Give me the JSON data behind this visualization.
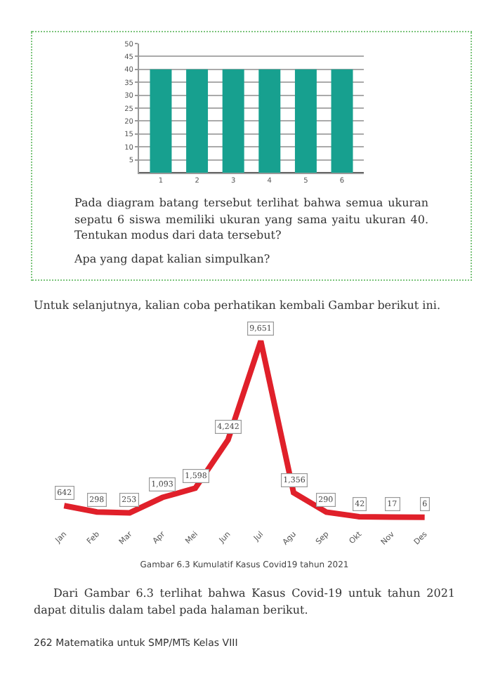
{
  "chart_data": [
    {
      "type": "bar",
      "categories": [
        "1",
        "2",
        "3",
        "4",
        "5",
        "6"
      ],
      "values": [
        40,
        40,
        40,
        40,
        40,
        40
      ],
      "color": "#17a08f",
      "ylim": [
        0,
        50
      ],
      "yticks": [
        5,
        10,
        15,
        20,
        25,
        30,
        35,
        40,
        45,
        50
      ],
      "grid": "y",
      "annotations": [
        "Pada diagram batang tersebut terlihat bahwa semua ukuran sepatu 6 siswa memiliki ukuran yang sama yaitu ukuran 40. Tentukan modus dari data tersebut?",
        "Apa yang dapat kalian simpulkan?"
      ]
    },
    {
      "type": "line",
      "title": "Untuk selanjutnya, kalian coba perhatikan kembali Gambar berikut ini.",
      "categories": [
        "Jan",
        "Feb",
        "Mar",
        "Apr",
        "Mei",
        "Jun",
        "Jul",
        "Agu",
        "Sep",
        "Okt",
        "Nov",
        "Des"
      ],
      "values": [
        642,
        298,
        253,
        1093,
        1598,
        4242,
        9651,
        1356,
        290,
        42,
        17,
        6
      ],
      "color": "#e0202a",
      "value_labels": [
        "642",
        "298",
        "253",
        "1,093",
        "1,598",
        "4,242",
        "9,651",
        "1,356",
        "290",
        "42",
        "17",
        "6"
      ],
      "annotations": [
        "Gambar 6.3  Kumulatif Kasus Covid19 tahun 2021",
        "Dari Gambar 6.3 terlihat bahwa Kasus Covid-19 untuk tahun 2021 dapat ditulis dalam tabel pada halaman berikut.",
        "262  Matematika untuk SMP/MTs Kelas VIII"
      ]
    }
  ]
}
